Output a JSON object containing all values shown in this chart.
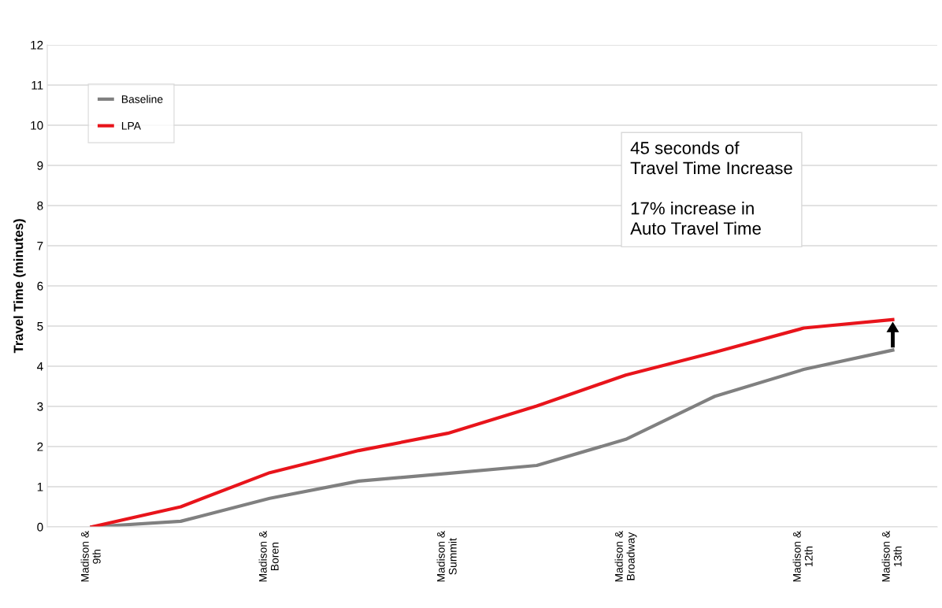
{
  "chart_data": {
    "type": "line",
    "ylabel": "Travel Time (minutes)",
    "categories": [
      "Madison &\n9th",
      null,
      "Madison &\nBoren",
      null,
      "Madison &\nSummit",
      null,
      "Madison &\nBroadway",
      null,
      "Madison &\n12th",
      "Madison &\n13th"
    ],
    "series": [
      {
        "name": "Baseline",
        "color": "#808080",
        "values": [
          0,
          0.14,
          0.71,
          1.14,
          1.33,
          1.53,
          2.18,
          3.25,
          3.92,
          4.4
        ]
      },
      {
        "name": "LPA",
        "color": "#e8141b",
        "values": [
          0,
          0.5,
          1.35,
          1.9,
          2.33,
          3.01,
          3.78,
          4.35,
          4.95,
          5.16
        ]
      }
    ],
    "ylim": [
      0,
      12
    ],
    "yticks": [
      0,
      1,
      2,
      3,
      4,
      5,
      6,
      7,
      8,
      9,
      10,
      11,
      12
    ],
    "grid": "y",
    "legend": "top left",
    "marker": "none",
    "line_style": "solid",
    "annotations": [
      "45 seconds of\nTravel Time Increase",
      "17% increase in\nAuto Travel Time"
    ]
  }
}
